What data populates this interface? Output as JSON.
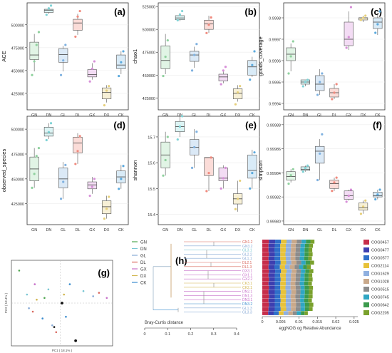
{
  "groups": [
    "GN",
    "DN",
    "GL",
    "DL",
    "GX",
    "DX",
    "CK"
  ],
  "colors": {
    "GN": "#8fd19e",
    "DN": "#7fd3d6",
    "GL": "#7fb1e0",
    "DL": "#f08a7e",
    "GX": "#d78fd8",
    "DX": "#e6cf7a",
    "CK": "#5aa9dd"
  },
  "fills": {
    "GN": "#e1f4e5",
    "DN": "#dcf4f4",
    "GL": "#dbe9f6",
    "DL": "#fbdcd8",
    "GX": "#f3dcf4",
    "DX": "#f7f0d6",
    "CK": "#d9ebf7"
  },
  "panels": [
    {
      "letter": "(a)",
      "ylabel": "ACE",
      "ticks": [
        "425000",
        "450000",
        "475000",
        "500000"
      ],
      "tickValues": [
        425000,
        450000,
        475000,
        500000
      ],
      "ylim": [
        407000,
        524000
      ],
      "stats": [
        [
          449000,
          462000,
          467000,
          481000,
          490000
        ],
        [
          512000,
          513500,
          516000,
          517000,
          519000
        ],
        [
          449000,
          459000,
          467500,
          474000,
          477000
        ],
        [
          489000,
          494000,
          502000,
          506000,
          512000
        ],
        [
          440000,
          443000,
          445500,
          451000,
          458000
        ],
        [
          415000,
          419000,
          426000,
          431000,
          434000
        ],
        [
          446000,
          452000,
          456000,
          467000,
          471000
        ]
      ],
      "points": [
        [
          [
            445000,
            460000,
            478000,
            492000
          ]
        ],
        [
          [
            511000,
            518000,
            521000
          ]
        ],
        [
          [
            445000,
            461000,
            478000
          ]
        ],
        [
          [
            487000,
            509000,
            515000
          ]
        ],
        [
          [
            438000,
            452000,
            460000
          ]
        ],
        [
          [
            412000,
            428000,
            433000
          ]
        ],
        [
          [
            444000,
            459000,
            471000
          ]
        ]
      ]
    },
    {
      "letter": "(b)",
      "ylabel": "chao1",
      "ticks": [
        "425000",
        "450000",
        "475000",
        "500000",
        "525000"
      ],
      "tickValues": [
        425000,
        450000,
        475000,
        500000,
        525000
      ],
      "ylim": [
        412000,
        529000
      ],
      "stats": [
        [
          451000,
          457000,
          466000,
          482000,
          495000
        ],
        [
          509000,
          510500,
          512500,
          515000,
          518000
        ],
        [
          458000,
          465000,
          472000,
          476000,
          481000
        ],
        [
          496000,
          500000,
          506000,
          510000,
          515000
        ],
        [
          441000,
          443500,
          448000,
          451000,
          456000
        ],
        [
          421000,
          424000,
          430000,
          435000,
          439000
        ],
        [
          448000,
          450000,
          459000,
          466000,
          470000
        ]
      ],
      "points": [
        [
          [
            449000,
            470000,
            488000
          ]
        ],
        [
          [
            510000,
            516000,
            520000
          ]
        ],
        [
          [
            455000,
            472000,
            484000
          ]
        ],
        [
          [
            496000,
            505000,
            513000
          ]
        ],
        [
          [
            440000,
            455000,
            459000
          ]
        ],
        [
          [
            418000,
            431000,
            438000
          ]
        ],
        [
          [
            445000,
            461000,
            476000
          ]
        ]
      ]
    },
    {
      "letter": "(c)",
      "ylabel": "goods_coverage",
      "ticks": [
        "0.9994",
        "0.9995",
        "0.9996",
        "0.9997",
        "0.9998"
      ],
      "tickValues": [
        0.9994,
        0.9995,
        0.9996,
        0.9997,
        0.9998
      ],
      "ylim": [
        0.99937,
        0.99987
      ],
      "stats": [
        [
          0.99955,
          0.9996,
          0.99963,
          0.99966,
          0.99968
        ],
        [
          0.99948,
          0.99949,
          0.9995,
          0.99951,
          0.99951
        ],
        [
          0.99944,
          0.99946,
          0.99949,
          0.99953,
          0.99956
        ],
        [
          0.99942,
          0.99943,
          0.99945,
          0.99947,
          0.99949
        ],
        [
          0.99965,
          0.99967,
          0.9997,
          0.99978,
          0.99983
        ],
        [
          0.99978,
          0.99979,
          0.9998,
          0.9998,
          0.99981
        ],
        [
          0.99972,
          0.99975,
          0.99978,
          0.9998,
          0.99982
        ]
      ],
      "points": [
        [
          [
            0.99954,
            0.99962,
            0.99969
          ]
        ],
        [
          [
            0.99948,
            0.9995,
            0.99951
          ]
        ],
        [
          [
            0.99944,
            0.9995,
            0.99954
          ]
        ],
        [
          [
            0.99942,
            0.99945,
            0.99949
          ]
        ],
        [
          [
            0.99966,
            0.99971,
            0.99985
          ]
        ],
        [
          [
            0.99979,
            0.9998,
            0.99981
          ]
        ],
        [
          [
            0.99973,
            0.99977,
            0.99983
          ]
        ]
      ]
    },
    {
      "letter": "(d)",
      "ylabel": "observed_species",
      "ticks": [
        "425000",
        "450000",
        "475000",
        "500000"
      ],
      "tickValues": [
        425000,
        450000,
        475000,
        500000
      ],
      "ylim": [
        404000,
        513000
      ],
      "stats": [
        [
          441000,
          448000,
          460000,
          472000,
          481000
        ],
        [
          490000,
          493000,
          496000,
          502000,
          506000
        ],
        [
          430000,
          441000,
          450000,
          461000,
          467000
        ],
        [
          465000,
          476000,
          486000,
          492000,
          496000
        ],
        [
          435000,
          440000,
          444000,
          447000,
          452000
        ],
        [
          410000,
          415000,
          422000,
          428000,
          433000
        ],
        [
          440000,
          446000,
          452000,
          458000,
          464000
        ]
      ],
      "points": [
        [
          [
            441000,
            455000,
            473000,
            481000
          ]
        ],
        [
          [
            489000,
            497000,
            506000
          ]
        ],
        [
          [
            430000,
            447000,
            464000
          ]
        ],
        [
          [
            465000,
            478000,
            493000
          ]
        ],
        [
          [
            433000,
            442000,
            450000
          ]
        ],
        [
          [
            410000,
            420000,
            432000
          ]
        ],
        [
          [
            440000,
            450000,
            463000
          ]
        ]
      ]
    },
    {
      "letter": "(e)",
      "ylabel": "shannon",
      "ticks": [
        "15.4",
        "15.5",
        "15.6",
        "15.7"
      ],
      "tickValues": [
        15.4,
        15.5,
        15.6,
        15.7
      ],
      "ylim": [
        15.36,
        15.78
      ],
      "stats": [
        [
          15.55,
          15.58,
          15.63,
          15.68,
          15.72
        ],
        [
          15.7,
          15.72,
          15.74,
          15.76,
          15.78
        ],
        [
          15.58,
          15.63,
          15.66,
          15.69,
          15.73
        ],
        [
          15.49,
          15.55,
          15.62,
          15.62,
          15.62
        ],
        [
          15.5,
          15.53,
          15.54,
          15.58,
          15.59
        ],
        [
          15.41,
          15.44,
          15.46,
          15.48,
          15.53
        ],
        [
          15.5,
          15.54,
          15.57,
          15.63,
          15.65
        ]
      ],
      "points": [
        [
          [
            15.55,
            15.61,
            15.7
          ]
        ],
        [
          [
            15.69,
            15.74,
            15.78
          ]
        ],
        [
          [
            15.58,
            15.66,
            15.72
          ]
        ],
        [
          [
            15.49,
            15.56,
            15.62
          ]
        ],
        [
          [
            15.5,
            15.54,
            15.58
          ]
        ],
        [
          [
            15.42,
            15.46,
            15.53
          ]
        ],
        [
          [
            15.5,
            15.56,
            15.64
          ]
        ]
      ]
    },
    {
      "letter": "(f)",
      "ylabel": "simpson",
      "ticks": [
        "0.99980",
        "0.99982",
        "0.99984",
        "0.99986",
        "0.99988"
      ],
      "tickValues": [
        0.9998,
        0.99982,
        0.99984,
        0.99986,
        0.99988
      ],
      "ylim": [
        0.999797,
        0.999887
      ],
      "stats": [
        [
          0.999832,
          0.999834,
          0.999837,
          0.999841,
          0.999843
        ],
        [
          0.999841,
          0.999842,
          0.999843,
          0.999845,
          0.999846
        ],
        [
          0.999834,
          0.999848,
          0.999858,
          0.999862,
          0.999868
        ],
        [
          0.999825,
          0.999827,
          0.999831,
          0.999834,
          0.999836
        ],
        [
          0.999817,
          0.999818,
          0.999821,
          0.999825,
          0.999826
        ],
        [
          0.999806,
          0.999809,
          0.999811,
          0.999815,
          0.999817
        ],
        [
          0.999818,
          0.99982,
          0.999821,
          0.999824,
          0.999826
        ]
      ],
      "points": [
        [
          [
            0.999831,
            0.999838,
            0.999843
          ]
        ],
        [
          [
            0.999841,
            0.999844,
            0.999846
          ]
        ],
        [
          [
            0.999834,
            0.999856,
            0.999872
          ]
        ],
        [
          [
            0.999825,
            0.999832,
            0.999836
          ]
        ],
        [
          [
            0.999816,
            0.999821,
            0.999826
          ]
        ],
        [
          [
            0.999806,
            0.999812,
            0.999817
          ]
        ],
        [
          [
            0.999818,
            0.999822,
            0.999826
          ]
        ]
      ]
    }
  ],
  "panel_g": {
    "letter": "(g)",
    "ylabel": "PC2 ( 13.4% )",
    "xlabel": "PC1 ( 18.1% )",
    "points": [
      [
        -0.21,
        0.19
      ],
      [
        -0.17,
        0.05
      ],
      [
        -0.16,
        -0.03
      ],
      [
        -0.14,
        -0.05
      ],
      [
        -0.13,
        0.11
      ],
      [
        -0.12,
        0.02
      ],
      [
        -0.09,
        -0.09
      ],
      [
        -0.08,
        0.03
      ],
      [
        -0.06,
        0.08
      ],
      [
        -0.04,
        -0.13
      ],
      [
        -0.02,
        -0.17
      ],
      [
        0.01,
        0.0
      ],
      [
        0.02,
        0.05
      ],
      [
        0.05,
        0.11
      ],
      [
        0.08,
        -0.22
      ],
      [
        0.12,
        0.07
      ],
      [
        0.17,
        0.04
      ],
      [
        0.2,
        0.06
      ],
      [
        0.24,
        0.03
      ],
      [
        -0.03,
        -0.14
      ],
      [
        0.03,
        -0.08
      ]
    ],
    "legend": [
      "GN",
      "DN",
      "GL",
      "DL",
      "GX",
      "DX",
      "CK"
    ]
  },
  "panel_h": {
    "letter": "(h)",
    "xlabel": "Bray-Curtis distance",
    "xticks": [
      "0",
      "0.1",
      "0.2",
      "0.3",
      "0.4"
    ],
    "samples": [
      "GN1.2",
      "GN3.2",
      "GL3.1",
      "GL2.2",
      "GL1.1",
      "DL2.1",
      "DL1.3",
      "GX3.1",
      "GX1.1",
      "GX2.2",
      "CK3.1",
      "CK2.1",
      "DN2.1",
      "DN1.3",
      "DN3.1",
      "DN3.2",
      "GL1.3",
      "GL3.3"
    ],
    "legend_groups": [
      "GN",
      "DN",
      "GL",
      "DL",
      "GX",
      "DX",
      "CK"
    ],
    "bar_xlabel": "eggNOG og Relative Abundance",
    "bar_xticks": [
      "0",
      "0.005",
      "0.01",
      "0.015",
      "0.02",
      "0.025"
    ],
    "cogs": [
      "COG0457",
      "COG0477",
      "COG0577",
      "COG2114",
      "COG1629",
      "COG1028",
      "COG0515",
      "COG0745",
      "COG0642",
      "COG2205"
    ],
    "cog_colors": [
      "#c62d4a",
      "#3d3fb0",
      "#2f6fc9",
      "#e7c23a",
      "#8fb0e0",
      "#c9a98b",
      "#8c8c8c",
      "#2fa6c3",
      "#3c9a4d",
      "#7aa12d"
    ],
    "abundances": [
      [
        0.0018,
        0.0017,
        0.0016,
        0.0015,
        0.0014,
        0.0014,
        0.0013,
        0.0012,
        0.0012,
        0.0011
      ],
      [
        0.0017,
        0.0017,
        0.0015,
        0.0015,
        0.0014,
        0.0013,
        0.0013,
        0.0012,
        0.0011,
        0.0011
      ],
      [
        0.0017,
        0.0016,
        0.0016,
        0.0015,
        0.0014,
        0.0013,
        0.0012,
        0.0012,
        0.0011,
        0.001
      ],
      [
        0.0018,
        0.0016,
        0.0015,
        0.0014,
        0.0014,
        0.0013,
        0.0013,
        0.0012,
        0.0011,
        0.0011
      ],
      [
        0.0017,
        0.0016,
        0.0016,
        0.0015,
        0.0013,
        0.0013,
        0.0012,
        0.0012,
        0.0011,
        0.001
      ],
      [
        0.0018,
        0.0017,
        0.0015,
        0.0015,
        0.0014,
        0.0014,
        0.0013,
        0.0012,
        0.0012,
        0.0011
      ],
      [
        0.0017,
        0.0016,
        0.0015,
        0.0014,
        0.0013,
        0.0013,
        0.0012,
        0.0011,
        0.0011,
        0.001
      ],
      [
        0.0018,
        0.0017,
        0.0016,
        0.0015,
        0.0014,
        0.0013,
        0.0012,
        0.0012,
        0.0011,
        0.0011
      ],
      [
        0.0017,
        0.0017,
        0.0015,
        0.0015,
        0.0014,
        0.0013,
        0.0013,
        0.0011,
        0.0011,
        0.001
      ],
      [
        0.0018,
        0.0016,
        0.0016,
        0.0014,
        0.0014,
        0.0013,
        0.0012,
        0.0012,
        0.0011,
        0.0011
      ],
      [
        0.0017,
        0.0017,
        0.0015,
        0.0015,
        0.0013,
        0.0013,
        0.0012,
        0.0012,
        0.0011,
        0.001
      ],
      [
        0.0018,
        0.0016,
        0.0015,
        0.0014,
        0.0014,
        0.0014,
        0.0013,
        0.0011,
        0.0012,
        0.0011
      ],
      [
        0.0017,
        0.0017,
        0.0016,
        0.0015,
        0.0014,
        0.0013,
        0.0012,
        0.0012,
        0.0011,
        0.001
      ],
      [
        0.0018,
        0.0016,
        0.0015,
        0.0015,
        0.0013,
        0.0013,
        0.0013,
        0.0012,
        0.0011,
        0.0011
      ],
      [
        0.0017,
        0.0017,
        0.0016,
        0.0014,
        0.0014,
        0.0013,
        0.0012,
        0.0011,
        0.0011,
        0.001
      ],
      [
        0.0018,
        0.0016,
        0.0015,
        0.0015,
        0.0014,
        0.0014,
        0.0012,
        0.0012,
        0.0012,
        0.0011
      ],
      [
        0.0017,
        0.0017,
        0.0016,
        0.0015,
        0.0013,
        0.0013,
        0.0013,
        0.0012,
        0.0011,
        0.001
      ],
      [
        0.0016,
        0.0015,
        0.0014,
        0.0013,
        0.0013,
        0.0012,
        0.0011,
        0.0011,
        0.001,
        0.0009
      ]
    ]
  },
  "chart_data": [
    {
      "type": "box",
      "panel": "(a)",
      "categories": [
        "GN",
        "DN",
        "GL",
        "DL",
        "GX",
        "DX",
        "CK"
      ],
      "ylabel": "ACE",
      "note": "box stats [min,q1,median,q3,max] in panels[0].stats"
    },
    {
      "type": "box",
      "panel": "(b)",
      "categories": [
        "GN",
        "DN",
        "GL",
        "DL",
        "GX",
        "DX",
        "CK"
      ],
      "ylabel": "chao1"
    },
    {
      "type": "box",
      "panel": "(c)",
      "categories": [
        "GN",
        "DN",
        "GL",
        "DL",
        "GX",
        "DX",
        "CK"
      ],
      "ylabel": "goods_coverage"
    },
    {
      "type": "box",
      "panel": "(d)",
      "categories": [
        "GN",
        "DN",
        "GL",
        "DL",
        "GX",
        "DX",
        "CK"
      ],
      "ylabel": "observed_species"
    },
    {
      "type": "box",
      "panel": "(e)",
      "categories": [
        "GN",
        "DN",
        "GL",
        "DL",
        "GX",
        "DX",
        "CK"
      ],
      "ylabel": "shannon"
    },
    {
      "type": "box",
      "panel": "(f)",
      "categories": [
        "GN",
        "DN",
        "GL",
        "DL",
        "GX",
        "DX",
        "CK"
      ],
      "ylabel": "simpson"
    },
    {
      "type": "scatter",
      "panel": "(g)",
      "xlabel": "PC1 ( 18.1% )",
      "ylabel": "PC2 ( 13.4% )"
    },
    {
      "type": "bar",
      "panel": "(h)",
      "orientation": "horizontal",
      "stacked": true,
      "xlabel": "eggNOG og Relative Abundance",
      "categories": [
        "GN1.2",
        "GN3.2",
        "GL3.1",
        "GL2.2",
        "GL1.1",
        "DL2.1",
        "DL1.3",
        "GX3.1",
        "GX1.1",
        "GX2.2",
        "CK3.1",
        "CK2.1",
        "DN2.1",
        "DN1.3",
        "DN3.1",
        "DN3.2",
        "GL1.3",
        "GL3.3"
      ],
      "series_names": [
        "COG0457",
        "COG0477",
        "COG0577",
        "COG2114",
        "COG1629",
        "COG1028",
        "COG0515",
        "COG0745",
        "COG0642",
        "COG2205"
      ]
    }
  ]
}
